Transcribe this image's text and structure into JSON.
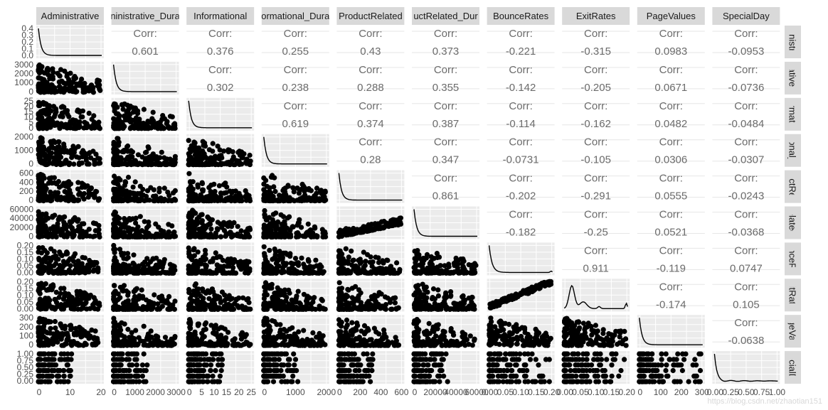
{
  "chart_data": {
    "type": "scatter",
    "title": "",
    "variables": [
      "Administrative",
      "Administrative_Duration",
      "Informational",
      "Informational_Duration",
      "ProductRelated",
      "ProductRelated_Duration",
      "BounceRates",
      "ExitRates",
      "PageValues",
      "SpecialDay"
    ],
    "column_labels": [
      "Administrative",
      "ninistrative_Dura",
      "Informational",
      "ormational_Dura",
      "ProductRelated",
      "uctRelated_Dur",
      "BounceRates",
      "ExitRates",
      "PageValues",
      "SpecialDay"
    ],
    "row_labels": [
      "ninistra",
      "rative_",
      "ormatic",
      "tional_I",
      "uctRel",
      "elated",
      "unceRa",
      "xitRate",
      "geVal",
      "ecialD"
    ],
    "x_ticks": [
      [
        "0",
        "10",
        "20"
      ],
      [
        "0",
        "1000",
        "2000",
        "3000"
      ],
      [
        "0",
        "5",
        "10",
        "15",
        "20",
        "25"
      ],
      [
        "0",
        "1000",
        "2000"
      ],
      [
        "0",
        "200",
        "400",
        "600"
      ],
      [
        "0",
        "20000",
        "40000",
        "60000"
      ],
      [
        "0.00",
        "0.05",
        "0.10",
        "0.15",
        "0.20"
      ],
      [
        "0.00",
        "0.05",
        "0.10",
        "0.15",
        "0.20"
      ],
      [
        "0",
        "100",
        "200",
        "300"
      ],
      [
        "0.00",
        "0.25",
        "0.50",
        "0.75",
        "1.00"
      ]
    ],
    "y_ticks": [
      [
        "0.4",
        "0.3",
        "0.2",
        "0.1",
        "0.0"
      ],
      [
        "3000",
        "2000",
        "1000",
        "0"
      ],
      [
        "25",
        "20",
        "15",
        "10",
        "5",
        "0"
      ],
      [
        "2000",
        "1000",
        "0"
      ],
      [
        "600",
        "400",
        "200",
        "0"
      ],
      [
        "60000",
        "40000",
        "20000",
        "0"
      ],
      [
        "0.20",
        "0.15",
        "0.10",
        "0.05",
        "0.00"
      ],
      [
        "0.20",
        "0.15",
        "0.10",
        "0.05",
        "0.00"
      ],
      [
        "300",
        "200",
        "100",
        "0"
      ],
      [
        "1.00",
        "0.75",
        "0.50",
        "0.25",
        "0.00"
      ]
    ],
    "corr_heading": "Corr:",
    "correlations": [
      [
        "0.601",
        "0.376",
        "0.255",
        "0.43",
        "0.373",
        "-0.221",
        "-0.315",
        "0.0983",
        "-0.0953"
      ],
      [
        "0.302",
        "0.238",
        "0.288",
        "0.355",
        "-0.142",
        "-0.205",
        "0.0671",
        "-0.0736"
      ],
      [
        "0.619",
        "0.374",
        "0.387",
        "-0.114",
        "-0.162",
        "0.0482",
        "-0.0484"
      ],
      [
        "0.28",
        "0.347",
        "-0.0731",
        "-0.105",
        "0.0306",
        "-0.0307"
      ],
      [
        "0.861",
        "-0.202",
        "-0.291",
        "0.0555",
        "-0.0243"
      ],
      [
        "-0.182",
        "-0.25",
        "0.0521",
        "-0.0368"
      ],
      [
        "0.911",
        "-0.119",
        "0.0747"
      ],
      [
        "-0.174",
        "0.105"
      ],
      [
        "-0.0638"
      ]
    ]
  },
  "watermark": "https://blog.csdn.net/zhaotian151",
  "colors": {
    "panel": "#ebebeb",
    "strip": "#d9d9d9",
    "ink": "#000000",
    "grid": "#ffffff"
  }
}
